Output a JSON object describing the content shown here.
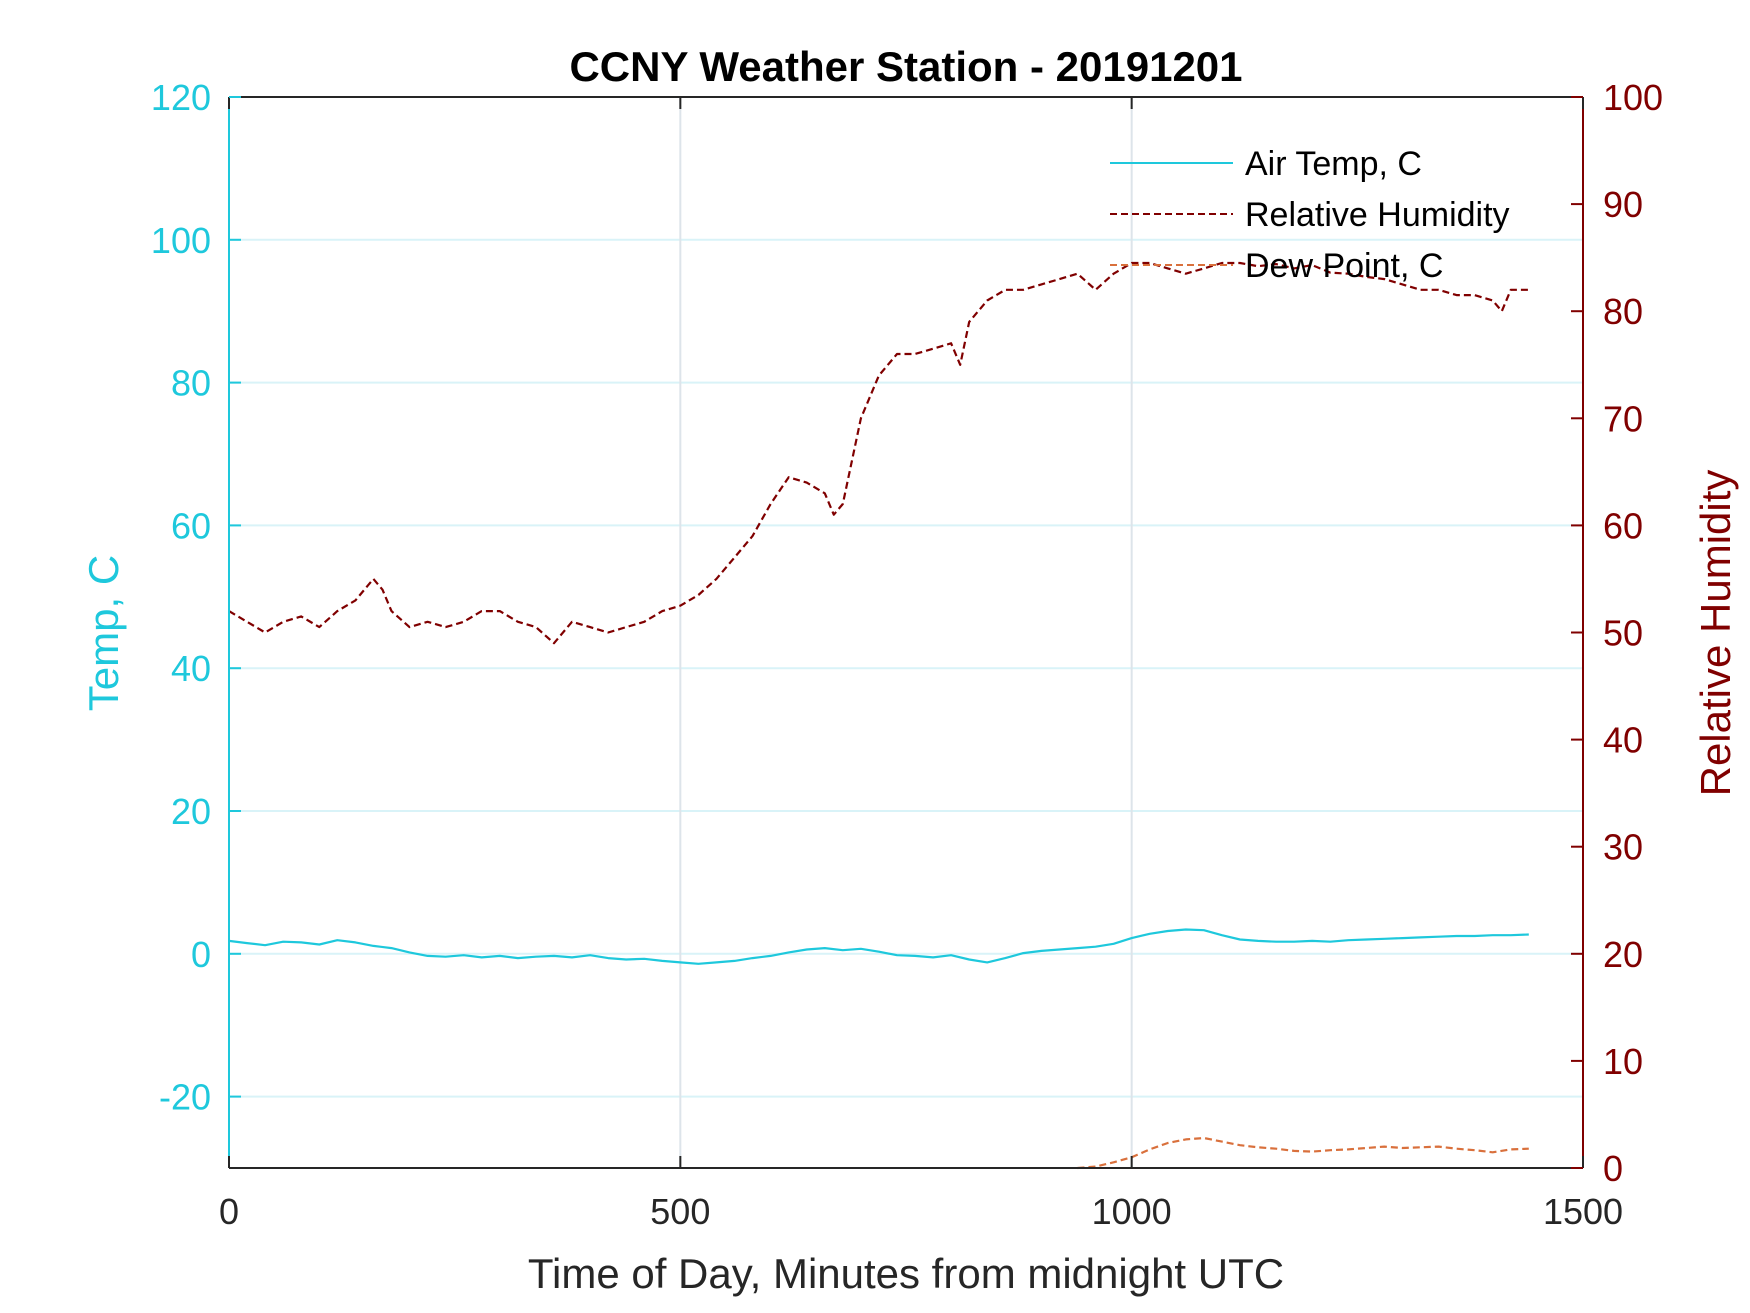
{
  "chart_data": {
    "type": "line",
    "title": "CCNY Weather Station - 20191201",
    "xlabel": "Time of Day, Minutes from midnight UTC",
    "ylabel_left": "Temp, C",
    "ylabel_right": "Relative Humidity",
    "xlim": [
      0,
      1500
    ],
    "ylim_left": [
      -30,
      120
    ],
    "ylim_right": [
      0,
      100
    ],
    "x_ticks": [
      0,
      500,
      1000,
      1500
    ],
    "y_ticks_left": [
      -20,
      0,
      20,
      40,
      60,
      80,
      100,
      120
    ],
    "y_ticks_right": [
      0,
      10,
      20,
      30,
      40,
      50,
      60,
      70,
      80,
      90,
      100
    ],
    "grid": true,
    "legend_position": "top-right",
    "colors": {
      "temp": "#1ec8dc",
      "humidity": "#800000",
      "dew": "#d9703c",
      "axis": "#262626"
    },
    "series": [
      {
        "name": "Air Temp, C",
        "axis": "left",
        "style": "solid",
        "x": [
          0,
          20,
          40,
          60,
          80,
          100,
          120,
          140,
          160,
          180,
          200,
          220,
          240,
          260,
          280,
          300,
          320,
          340,
          360,
          380,
          400,
          420,
          440,
          460,
          480,
          500,
          520,
          540,
          560,
          580,
          600,
          620,
          640,
          660,
          680,
          700,
          720,
          740,
          760,
          780,
          800,
          820,
          840,
          860,
          880,
          900,
          920,
          940,
          960,
          980,
          1000,
          1020,
          1040,
          1060,
          1080,
          1100,
          1120,
          1140,
          1160,
          1180,
          1200,
          1220,
          1240,
          1260,
          1280,
          1300,
          1320,
          1340,
          1360,
          1380,
          1400,
          1420,
          1440
        ],
        "y": [
          1.8,
          1.5,
          1.2,
          1.7,
          1.6,
          1.3,
          1.9,
          1.6,
          1.1,
          0.8,
          0.2,
          -0.3,
          -0.4,
          -0.2,
          -0.5,
          -0.3,
          -0.6,
          -0.4,
          -0.3,
          -0.5,
          -0.2,
          -0.6,
          -0.8,
          -0.7,
          -1.0,
          -1.2,
          -1.4,
          -1.2,
          -1.0,
          -0.6,
          -0.3,
          0.2,
          0.6,
          0.8,
          0.5,
          0.7,
          0.3,
          -0.2,
          -0.3,
          -0.5,
          -0.2,
          -0.8,
          -1.2,
          -0.6,
          0.1,
          0.4,
          0.6,
          0.8,
          1.0,
          1.4,
          2.2,
          2.8,
          3.2,
          3.4,
          3.3,
          2.6,
          2.0,
          1.8,
          1.7,
          1.7,
          1.8,
          1.7,
          1.9,
          2.0,
          2.1,
          2.2,
          2.3,
          2.4,
          2.5,
          2.5,
          2.6,
          2.6,
          2.7
        ]
      },
      {
        "name": "Relative Humidity",
        "axis": "right",
        "style": "dashed",
        "x": [
          0,
          20,
          40,
          60,
          80,
          100,
          120,
          140,
          160,
          170,
          180,
          200,
          220,
          240,
          260,
          280,
          300,
          320,
          340,
          360,
          380,
          400,
          420,
          440,
          460,
          480,
          500,
          520,
          540,
          560,
          580,
          600,
          620,
          640,
          660,
          670,
          680,
          700,
          720,
          740,
          760,
          780,
          800,
          810,
          820,
          840,
          860,
          880,
          900,
          920,
          940,
          960,
          980,
          1000,
          1020,
          1040,
          1060,
          1080,
          1100,
          1120,
          1140,
          1160,
          1180,
          1200,
          1220,
          1240,
          1260,
          1280,
          1300,
          1320,
          1340,
          1360,
          1380,
          1400,
          1410,
          1420,
          1440
        ],
        "y": [
          52,
          51,
          50,
          51,
          51.5,
          50.5,
          52,
          53,
          55,
          54,
          52,
          50.5,
          51,
          50.5,
          51,
          52,
          52,
          51,
          50.5,
          49,
          51,
          50.5,
          50,
          50.5,
          51,
          52,
          52.5,
          53.5,
          55,
          57,
          59,
          62,
          64.5,
          64,
          63,
          61,
          62,
          70,
          74,
          76,
          76,
          76.5,
          77,
          75,
          79,
          81,
          82,
          82,
          82.5,
          83,
          83.5,
          82,
          83.5,
          84.5,
          84.5,
          84,
          83.5,
          84,
          84.5,
          84.5,
          84.2,
          84.4,
          84,
          84.3,
          83.6,
          83.5,
          83.2,
          83,
          82.5,
          82,
          82,
          81.5,
          81.5,
          81,
          80,
          82,
          82
        ]
      },
      {
        "name": "Dew Point, C",
        "axis": "left",
        "style": "dashed",
        "x": [
          940,
          960,
          980,
          1000,
          1020,
          1040,
          1060,
          1080,
          1100,
          1120,
          1140,
          1160,
          1180,
          1200,
          1220,
          1240,
          1260,
          1280,
          1300,
          1320,
          1340,
          1360,
          1380,
          1400,
          1420,
          1440
        ],
        "y": [
          -30,
          -29.8,
          -29.2,
          -28.5,
          -27.4,
          -26.5,
          -26.0,
          -25.8,
          -26.3,
          -26.8,
          -27.1,
          -27.3,
          -27.6,
          -27.7,
          -27.5,
          -27.4,
          -27.2,
          -27.0,
          -27.2,
          -27.1,
          -27.0,
          -27.3,
          -27.5,
          -27.8,
          -27.4,
          -27.3
        ]
      }
    ]
  }
}
